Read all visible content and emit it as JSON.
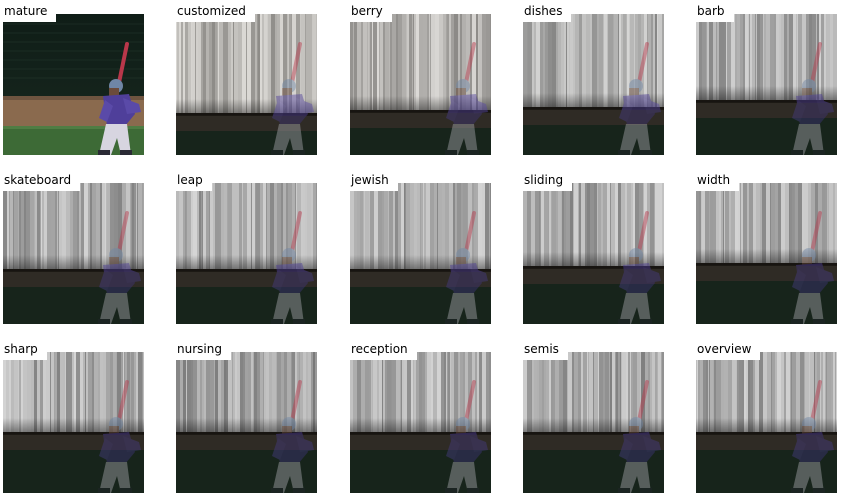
{
  "tiles": [
    {
      "label": "mature",
      "kind": "original"
    },
    {
      "label": "customized",
      "kind": "saliency",
      "seed": 3,
      "horizon": 0.7,
      "tint": "#e6e0cf"
    },
    {
      "label": "berry",
      "kind": "saliency",
      "seed": 7,
      "horizon": 0.68,
      "tint": "#e7e1d4"
    },
    {
      "label": "dishes",
      "kind": "saliency",
      "seed": 11,
      "horizon": 0.66,
      "tint": "#c9c7c3"
    },
    {
      "label": "barb",
      "kind": "saliency",
      "seed": 13,
      "horizon": 0.61,
      "tint": "#bfbfbf"
    },
    {
      "label": "skateboard",
      "kind": "saliency",
      "seed": 17,
      "horizon": 0.61,
      "tint": "#c4c4c4"
    },
    {
      "label": "leap",
      "kind": "saliency",
      "seed": 19,
      "horizon": 0.61,
      "tint": "#c8c8c8"
    },
    {
      "label": "jewish",
      "kind": "saliency",
      "seed": 23,
      "horizon": 0.61,
      "tint": "#bdbdbd"
    },
    {
      "label": "sliding",
      "kind": "saliency",
      "seed": 29,
      "horizon": 0.59,
      "tint": "#c0c0c0"
    },
    {
      "label": "width",
      "kind": "saliency",
      "seed": 31,
      "horizon": 0.57,
      "tint": "#c7c7c7"
    },
    {
      "label": "sharp",
      "kind": "saliency",
      "seed": 37,
      "horizon": 0.57,
      "tint": "#c2c2c2"
    },
    {
      "label": "nursing",
      "kind": "saliency",
      "seed": 41,
      "horizon": 0.57,
      "tint": "#9a9a9a"
    },
    {
      "label": "reception",
      "kind": "saliency",
      "seed": 43,
      "horizon": 0.57,
      "tint": "#c6c6c6"
    },
    {
      "label": "semis",
      "kind": "saliency",
      "seed": 47,
      "horizon": 0.57,
      "tint": "#b5b5b5"
    },
    {
      "label": "overview",
      "kind": "saliency",
      "seed": 53,
      "horizon": 0.57,
      "tint": "#c3c3c3"
    }
  ]
}
